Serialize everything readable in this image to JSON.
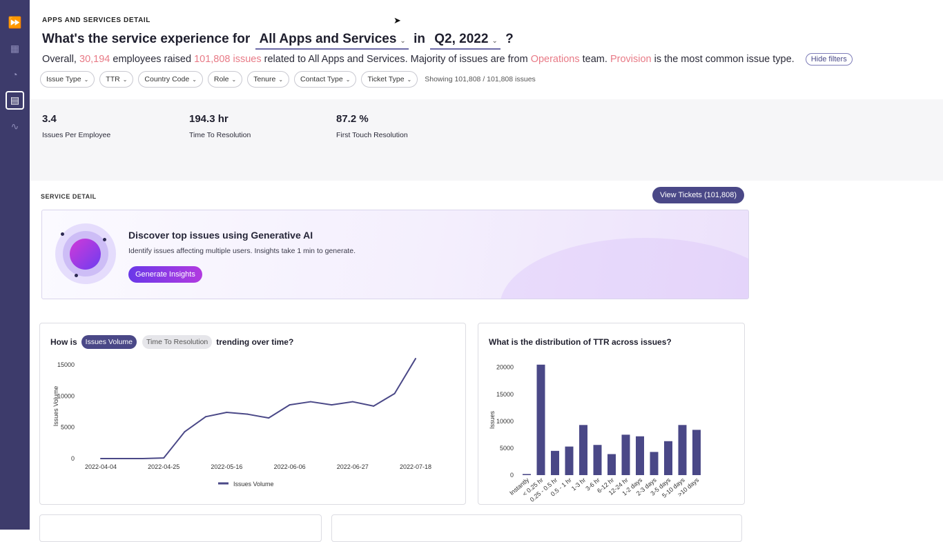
{
  "sidebar": {
    "items": [
      {
        "name": "expand-icon",
        "glyph": "⏩"
      },
      {
        "name": "grid-icon",
        "glyph": "▦"
      },
      {
        "name": "gauge-icon",
        "glyph": "◔"
      },
      {
        "name": "detail-icon",
        "glyph": "▤"
      },
      {
        "name": "trend-icon",
        "glyph": "∿"
      }
    ]
  },
  "header": {
    "eyebrow": "APPS AND SERVICES DETAIL",
    "q_prefix": "What's the service experience for",
    "service_select": "All Apps and Services",
    "q_in": "in",
    "period_select": "Q2, 2022",
    "q_suffix": "?"
  },
  "summary": {
    "p1": "Overall, ",
    "employees": "30,194",
    "p2": " employees raised ",
    "issues": "101,808 issues",
    "p3": " related to All Apps and Services. Majority of issues are from ",
    "team": "Operations",
    "p4": " team. ",
    "issue_type": "Provision",
    "p5": " is the most common issue type.",
    "hide_filters": "Hide filters"
  },
  "filters": {
    "chips": [
      "Issue Type",
      "TTR",
      "Country Code",
      "Role",
      "Tenure",
      "Contact Type",
      "Ticket Type"
    ],
    "showing": "Showing 101,808 / 101,808 issues"
  },
  "kpis": [
    {
      "value": "3.4",
      "label": "Issues Per Employee"
    },
    {
      "value": "194.3 hr",
      "label": "Time To Resolution"
    },
    {
      "value": "87.2 %",
      "label": "First Touch Resolution"
    }
  ],
  "service_detail": {
    "title": "SERVICE DETAIL",
    "view_tickets": "View Tickets (101,808)"
  },
  "ai_card": {
    "title": "Discover top issues using Generative AI",
    "subtitle": "Identify issues affecting multiple users. Insights take 1 min to generate.",
    "button": "Generate Insights"
  },
  "trend": {
    "q_prefix": "How is",
    "pill_active": "Issues Volume",
    "pill_inactive": "Time To Resolution",
    "q_suffix": "trending over time?"
  },
  "distribution": {
    "question": "What is the distribution of TTR across issues?"
  },
  "colors": {
    "accent": "#4a4887",
    "highlight": "#e87a86",
    "sidebar": "#3d3b6b"
  },
  "chart_data": [
    {
      "type": "line",
      "title": "How is Issues Volume trending over time?",
      "xlabel": "",
      "ylabel": "Issues Volume",
      "x_ticks": [
        "2022-04-04",
        "2022-04-25",
        "2022-05-16",
        "2022-06-06",
        "2022-06-27",
        "2022-07-18"
      ],
      "x_index_ticks": [
        0,
        3,
        6,
        9,
        12,
        15
      ],
      "y_ticks": [
        "0",
        "5000",
        "10000",
        "15000"
      ],
      "ylim": [
        0,
        17000
      ],
      "legend": "Issues Volume",
      "series": [
        {
          "name": "Issues Volume",
          "values": [
            0,
            0,
            0,
            100,
            4300,
            6700,
            7400,
            7100,
            6500,
            8600,
            9100,
            8600,
            9100,
            8400,
            10400,
            16000
          ]
        }
      ]
    },
    {
      "type": "bar",
      "title": "What is the distribution of TTR across issues?",
      "xlabel": "",
      "ylabel": "Issues",
      "categories": [
        "Instantly",
        "< 0.25 hr",
        "0.25 - 0.5 hr",
        "0.5 - 1 hr",
        "1-3 hr",
        "3-6 hr",
        "6-12 hr",
        "12-24 hr",
        "1-2 days",
        "2-3 days",
        "3-5 days",
        "5-10 days",
        ">10 days"
      ],
      "values": [
        200,
        20500,
        4500,
        5300,
        9300,
        5600,
        3900,
        7500,
        7200,
        4300,
        6300,
        9300,
        8400
      ],
      "y_ticks": [
        "0",
        "5000",
        "10000",
        "15000",
        "20000"
      ],
      "ylim": [
        0,
        21500
      ]
    }
  ]
}
